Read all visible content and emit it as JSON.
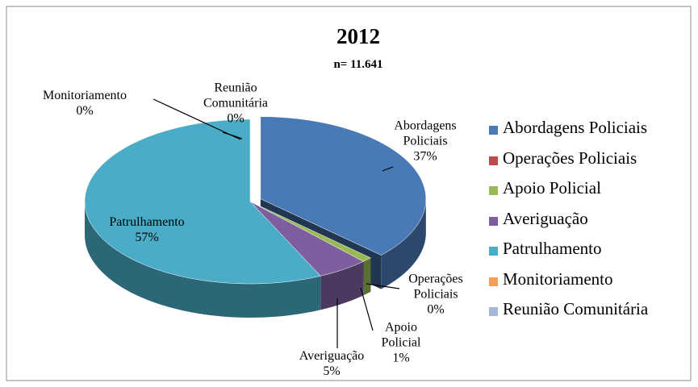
{
  "chart_data": {
    "type": "pie3d",
    "title": "2012",
    "subtitle": "n= 11.641",
    "categories": [
      "Abordagens Policiais",
      "Operações Policiais",
      "Apoio Policial",
      "Averiguação",
      "Patrulhamento",
      "Monitoriamento",
      "Reunião Comunitária"
    ],
    "values": [
      37,
      0,
      1,
      5,
      57,
      0,
      0
    ],
    "value_labels": [
      "37%",
      "0%",
      "1%",
      "5%",
      "57%",
      "0%",
      "0%"
    ],
    "colors": [
      "#4a7ab5",
      "#be4b48",
      "#98b954",
      "#7d5fa0",
      "#4aacc6",
      "#f59d56",
      "#a5b8d8"
    ],
    "legend": "right"
  }
}
